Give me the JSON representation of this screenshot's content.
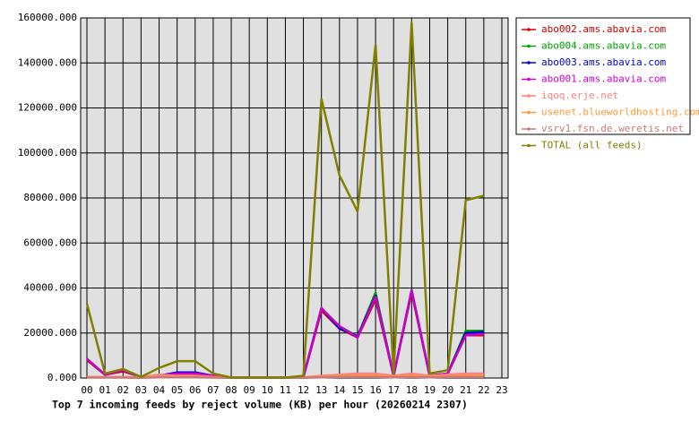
{
  "chart_data": {
    "type": "line",
    "title": "Top 7 incoming feeds by reject volume (KB) per hour (20260214 2307)",
    "categories": [
      "00",
      "01",
      "02",
      "03",
      "04",
      "05",
      "06",
      "07",
      "08",
      "09",
      "10",
      "11",
      "12",
      "13",
      "14",
      "15",
      "16",
      "17",
      "18",
      "19",
      "20",
      "21",
      "22",
      "23"
    ],
    "ylim": [
      0,
      160000
    ],
    "yticks": [
      {
        "value": 0,
        "label": "0.000"
      },
      {
        "value": 20000,
        "label": "20000.000"
      },
      {
        "value": 40000,
        "label": "40000.000"
      },
      {
        "value": 60000,
        "label": "60000.000"
      },
      {
        "value": 80000,
        "label": "80000.000"
      },
      {
        "value": 100000,
        "label": "100000.000"
      },
      {
        "value": 120000,
        "label": "120000.000"
      },
      {
        "value": 140000,
        "label": "140000.000"
      },
      {
        "value": 160000,
        "label": "160000.000"
      }
    ],
    "grid": true,
    "legend": "right",
    "series": [
      {
        "name": "abo002.ams.abavia.com",
        "color": "#cc0000",
        "values": [
          8000,
          1500,
          3000,
          500,
          1000,
          2000,
          2000,
          1000,
          200,
          200,
          200,
          200,
          500,
          30000,
          22000,
          18000,
          35000,
          1000,
          38000,
          1000,
          2000,
          19000,
          19000,
          null
        ]
      },
      {
        "name": "abo004.ams.abavia.com",
        "color": "#00a000",
        "values": [
          8500,
          1500,
          3500,
          500,
          1000,
          2000,
          2000,
          1000,
          200,
          200,
          200,
          200,
          500,
          31000,
          23000,
          18500,
          38000,
          1000,
          39000,
          1000,
          2000,
          21000,
          21000,
          null
        ]
      },
      {
        "name": "abo003.ams.abavia.com",
        "color": "#0000cc",
        "values": [
          8500,
          1500,
          3500,
          500,
          1000,
          2500,
          2500,
          1000,
          200,
          200,
          200,
          200,
          500,
          31000,
          22000,
          18500,
          36500,
          1000,
          39000,
          1000,
          2000,
          20000,
          20500,
          null
        ]
      },
      {
        "name": "abo001.ams.abavia.com",
        "color": "#cc00cc",
        "values": [
          8500,
          1500,
          3500,
          500,
          1000,
          2000,
          2000,
          1000,
          200,
          200,
          200,
          200,
          500,
          31000,
          23000,
          18000,
          36000,
          1000,
          39000,
          1000,
          2000,
          19000,
          19500,
          null
        ]
      },
      {
        "name": "iqoq.erje.net",
        "color": "#ff8080",
        "values": [
          500,
          500,
          500,
          300,
          1500,
          1000,
          1000,
          500,
          200,
          200,
          200,
          200,
          300,
          1000,
          1500,
          2000,
          2000,
          1000,
          2000,
          1000,
          1500,
          2000,
          2000,
          null
        ]
      },
      {
        "name": "usenet.blueworldhosting.com",
        "color": "#ff9933",
        "values": [
          300,
          300,
          300,
          200,
          500,
          500,
          500,
          300,
          100,
          100,
          100,
          100,
          200,
          500,
          800,
          1000,
          1000,
          500,
          1000,
          500,
          800,
          1000,
          1000,
          null
        ]
      },
      {
        "name": "vsrv1.fsn.de.weretis.net",
        "color": "#cc7777",
        "values": [
          200,
          200,
          200,
          100,
          300,
          300,
          300,
          200,
          100,
          100,
          100,
          100,
          100,
          300,
          500,
          500,
          500,
          300,
          500,
          300,
          500,
          500,
          500,
          null
        ]
      },
      {
        "name": "TOTAL (all feeds)",
        "color": "#808000",
        "values": [
          33000,
          2000,
          4000,
          500,
          4500,
          7500,
          7500,
          2000,
          200,
          200,
          200,
          200,
          1000,
          124000,
          90000,
          74000,
          148000,
          2000,
          158000,
          2000,
          3500,
          79000,
          81000,
          null
        ]
      }
    ]
  }
}
